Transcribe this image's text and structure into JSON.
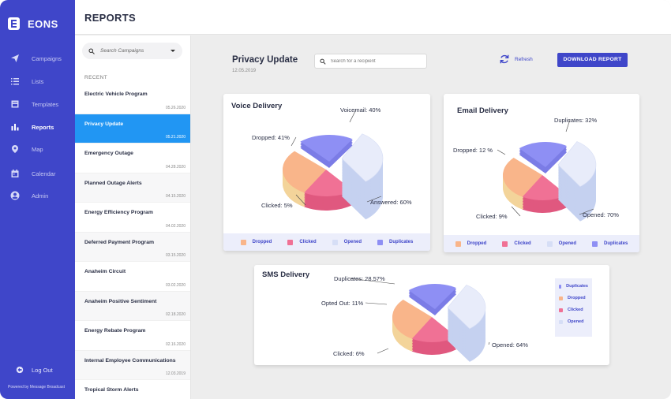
{
  "app": {
    "name": "EONS",
    "powered_by": "Powered by Message Broadcast"
  },
  "nav": {
    "items": [
      {
        "label": "Campaigns",
        "icon": "paper-plane-icon"
      },
      {
        "label": "Lists",
        "icon": "list-icon"
      },
      {
        "label": "Templates",
        "icon": "template-icon"
      },
      {
        "label": "Reports",
        "icon": "bar-chart-icon"
      },
      {
        "label": "Map",
        "icon": "map-pin-icon"
      },
      {
        "label": "Calendar",
        "icon": "calendar-icon"
      },
      {
        "label": "Admin",
        "icon": "user-icon"
      }
    ],
    "active": "Reports",
    "logout_label": "Log Out"
  },
  "header": {
    "title": "REPORTS"
  },
  "sidebar": {
    "search_placeholder": "Search Campaigns",
    "recent_label": "RECENT",
    "campaigns": [
      {
        "name": "Electric Vehicle Program",
        "date": "05.26.2020"
      },
      {
        "name": "Privacy Update",
        "date": "05.21.2020"
      },
      {
        "name": "Emergency Outage",
        "date": "04.28.2020"
      },
      {
        "name": "Planned Outage Alerts",
        "date": "04.15.2020"
      },
      {
        "name": "Energy Efficiency Program",
        "date": "04.02.2020"
      },
      {
        "name": "Deferred Payment Program",
        "date": "03.15.2020"
      },
      {
        "name": "Anaheim Circuit",
        "date": "03.02.2020"
      },
      {
        "name": "Anaheim Positive Sentiment",
        "date": "02.18.2020"
      },
      {
        "name": "Energy Rebate Program",
        "date": "02.16.2020"
      },
      {
        "name": "Internal Employee Communications",
        "date": "12.03.2019"
      },
      {
        "name": "Tropical Storm Alerts",
        "date": ""
      }
    ],
    "selected_index": 1
  },
  "report": {
    "title": "Privacy Update",
    "date": "12.05.2019",
    "recipient_placeholder": "Search for a recipient",
    "refresh_label": "Refresh",
    "download_label": "DOWNLOAD REPORT"
  },
  "colors": {
    "brand": "#3f46c9",
    "selected_row": "#2196f3",
    "dropped": "#f9b58a",
    "clicked": "#f07195",
    "opened": "#e8ecfa",
    "duplicates": "#8e8ff4"
  },
  "legend_labels": {
    "dropped": "Dropped",
    "clicked": "Clicked",
    "opened": "Opened",
    "duplicates": "Duplicates"
  },
  "chart_data": [
    {
      "type": "pie",
      "title": "Voice Delivery",
      "slices": [
        {
          "name": "Dropped",
          "label": "Dropped: 41%"
        },
        {
          "name": "Clicked",
          "label": "Clicked: 5%"
        },
        {
          "name": "Opened",
          "label": "Answered: 60%"
        },
        {
          "name": "Duplicates",
          "label": "Voicemail: 40%"
        }
      ],
      "legend": "bottom"
    },
    {
      "type": "pie",
      "title": "Email Delivery",
      "slices": [
        {
          "name": "Dropped",
          "label": "Dropped: 12 %"
        },
        {
          "name": "Clicked",
          "label": "Clicked: 9%"
        },
        {
          "name": "Opened",
          "label": "Opened: 70%"
        },
        {
          "name": "Duplicates",
          "label": "Duplicates: 32%"
        }
      ],
      "legend": "bottom"
    },
    {
      "type": "pie",
      "title": "SMS Delivery",
      "slices": [
        {
          "name": "Dropped",
          "label": "Opted Out: 11%"
        },
        {
          "name": "Clicked",
          "label": "Clicked: 6%"
        },
        {
          "name": "Opened",
          "label": "Opened: 64%"
        },
        {
          "name": "Duplicates",
          "label": "Duplicates: 28.57%"
        }
      ],
      "legend": "right"
    }
  ]
}
